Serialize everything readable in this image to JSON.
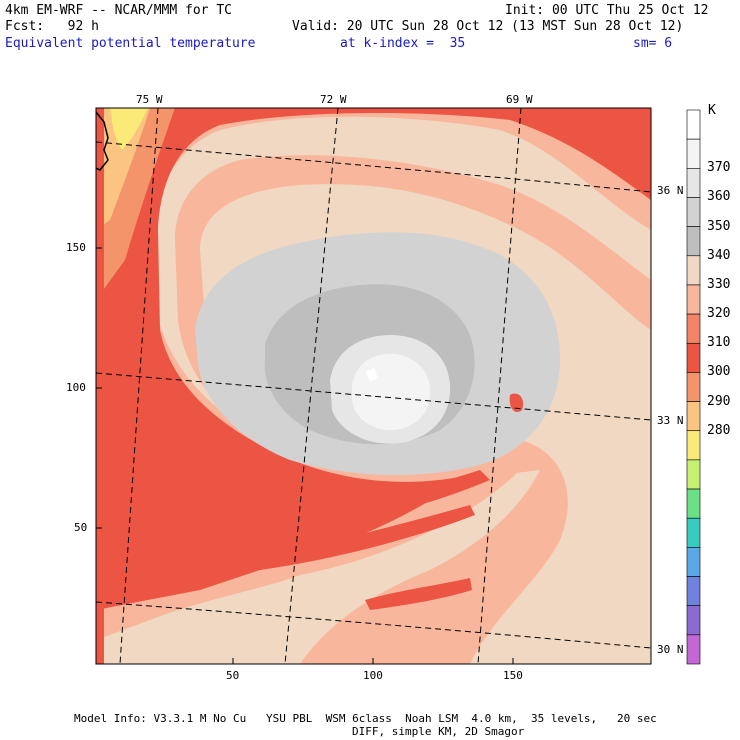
{
  "header": {
    "model": "4km EM-WRF -- NCAR/MMM for TC",
    "init": "Init: 00 UTC Thu 25 Oct 12",
    "fcst": "Fcst:   92 h",
    "valid": "Valid: 20 UTC Sun 28 Oct 12 (13 MST Sun 28 Oct 12)",
    "field": "Equivalent potential temperature",
    "level": "at k-index =  35",
    "smooth": "sm= 6"
  },
  "map": {
    "lon_labels": [
      "75 W",
      "72 W",
      "69 W"
    ],
    "lat_labels": [
      "36 N",
      "33 N",
      "30 N"
    ],
    "x_ticks": [
      "50",
      "100",
      "150"
    ],
    "y_ticks": [
      "150",
      "100",
      "50"
    ]
  },
  "colorbar": {
    "unit": "K",
    "levels": [
      "370",
      "360",
      "350",
      "340",
      "330",
      "320",
      "310",
      "300",
      "290",
      "280"
    ],
    "colors": [
      "#ffffff",
      "#f4f4f4",
      "#e6e6e6",
      "#d2d2d2",
      "#bebebe",
      "#f0d8c2",
      "#f8b69c",
      "#f48468",
      "#ec5443",
      "#f4946a",
      "#fbc480",
      "#faeb78",
      "#c6f070",
      "#6ce086",
      "#36ccc0",
      "#5aa8e8",
      "#6e82de",
      "#8c6ad2",
      "#c466d6"
    ]
  },
  "footer": {
    "line1": "Model Info: V3.3.1 M No Cu   YSU PBL  WSM 6class  Noah LSM  4.0 km,  35 levels,   20 sec",
    "line2": "DIFF, simple KM, 2D Smagor"
  }
}
